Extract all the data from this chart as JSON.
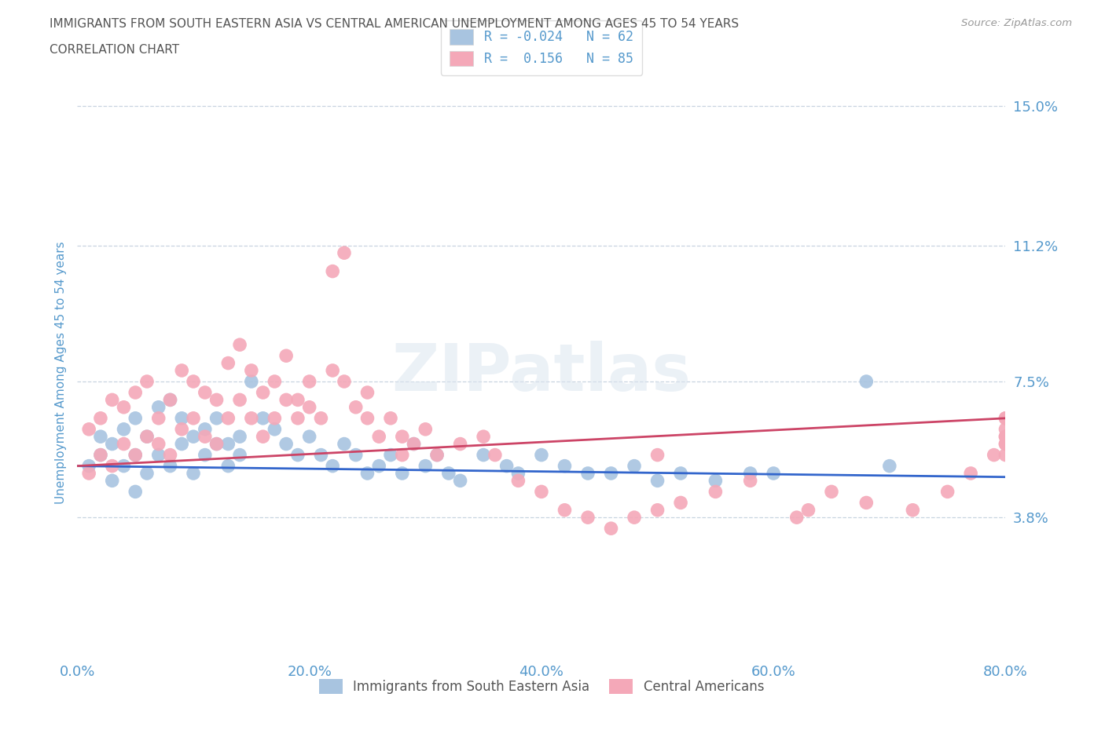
{
  "title_line1": "IMMIGRANTS FROM SOUTH EASTERN ASIA VS CENTRAL AMERICAN UNEMPLOYMENT AMONG AGES 45 TO 54 YEARS",
  "title_line2": "CORRELATION CHART",
  "source_text": "Source: ZipAtlas.com",
  "ylabel": "Unemployment Among Ages 45 to 54 years",
  "xlim": [
    0,
    80
  ],
  "ylim": [
    0,
    15.5
  ],
  "yticks": [
    3.8,
    7.5,
    11.2,
    15.0
  ],
  "ytick_labels": [
    "3.8%",
    "7.5%",
    "11.2%",
    "15.0%"
  ],
  "xticks": [
    0,
    20,
    40,
    60,
    80
  ],
  "xtick_labels": [
    "0.0%",
    "20.0%",
    "40.0%",
    "60.0%",
    "80.0%"
  ],
  "series1_label": "Immigrants from South Eastern Asia",
  "series2_label": "Central Americans",
  "series1_color": "#a8c4e0",
  "series2_color": "#f4a8b8",
  "series1_R": -0.024,
  "series1_N": 62,
  "series2_R": 0.156,
  "series2_N": 85,
  "regression1_color": "#3366cc",
  "regression2_color": "#cc4466",
  "watermark_text": "ZIPatlas",
  "title_color": "#555555",
  "axis_color": "#5599cc",
  "background_color": "#ffffff",
  "grid_color": "#c8d4e0",
  "series1_x": [
    1,
    2,
    2,
    3,
    3,
    4,
    4,
    5,
    5,
    5,
    6,
    6,
    7,
    7,
    8,
    8,
    9,
    9,
    10,
    10,
    11,
    11,
    12,
    12,
    13,
    13,
    14,
    14,
    15,
    16,
    17,
    18,
    19,
    20,
    21,
    22,
    23,
    24,
    25,
    26,
    27,
    28,
    29,
    30,
    31,
    32,
    33,
    35,
    37,
    38,
    40,
    42,
    44,
    46,
    48,
    50,
    52,
    55,
    58,
    60,
    68,
    70
  ],
  "series1_y": [
    5.2,
    5.5,
    6.0,
    4.8,
    5.8,
    5.2,
    6.2,
    4.5,
    5.5,
    6.5,
    5.0,
    6.0,
    5.5,
    6.8,
    5.2,
    7.0,
    5.8,
    6.5,
    5.0,
    6.0,
    5.5,
    6.2,
    5.8,
    6.5,
    5.2,
    5.8,
    6.0,
    5.5,
    7.5,
    6.5,
    6.2,
    5.8,
    5.5,
    6.0,
    5.5,
    5.2,
    5.8,
    5.5,
    5.0,
    5.2,
    5.5,
    5.0,
    5.8,
    5.2,
    5.5,
    5.0,
    4.8,
    5.5,
    5.2,
    5.0,
    5.5,
    5.2,
    5.0,
    5.0,
    5.2,
    4.8,
    5.0,
    4.8,
    5.0,
    5.0,
    7.5,
    5.2
  ],
  "series2_x": [
    1,
    1,
    2,
    2,
    3,
    3,
    4,
    4,
    5,
    5,
    6,
    6,
    7,
    7,
    8,
    8,
    9,
    9,
    10,
    10,
    11,
    11,
    12,
    12,
    13,
    13,
    14,
    14,
    15,
    15,
    16,
    16,
    17,
    17,
    18,
    18,
    19,
    19,
    20,
    20,
    21,
    22,
    22,
    23,
    23,
    24,
    25,
    25,
    26,
    27,
    28,
    28,
    29,
    30,
    31,
    33,
    35,
    36,
    38,
    40,
    42,
    44,
    46,
    48,
    50,
    50,
    52,
    55,
    58,
    62,
    63,
    65,
    68,
    72,
    75,
    77,
    79,
    80,
    80,
    80,
    80,
    80,
    80,
    80,
    80
  ],
  "series2_y": [
    5.0,
    6.2,
    5.5,
    6.5,
    5.2,
    7.0,
    5.8,
    6.8,
    5.5,
    7.2,
    6.0,
    7.5,
    5.8,
    6.5,
    5.5,
    7.0,
    6.2,
    7.8,
    6.5,
    7.5,
    6.0,
    7.2,
    5.8,
    7.0,
    6.5,
    8.0,
    7.0,
    8.5,
    6.5,
    7.8,
    6.0,
    7.2,
    6.5,
    7.5,
    7.0,
    8.2,
    6.5,
    7.0,
    6.8,
    7.5,
    6.5,
    7.8,
    10.5,
    11.0,
    7.5,
    6.8,
    6.5,
    7.2,
    6.0,
    6.5,
    5.5,
    6.0,
    5.8,
    6.2,
    5.5,
    5.8,
    6.0,
    5.5,
    4.8,
    4.5,
    4.0,
    3.8,
    3.5,
    3.8,
    4.0,
    5.5,
    4.2,
    4.5,
    4.8,
    3.8,
    4.0,
    4.5,
    4.2,
    4.0,
    4.5,
    5.0,
    5.5,
    6.5,
    5.8,
    6.0,
    5.5,
    5.8,
    6.0,
    6.2,
    6.5
  ]
}
